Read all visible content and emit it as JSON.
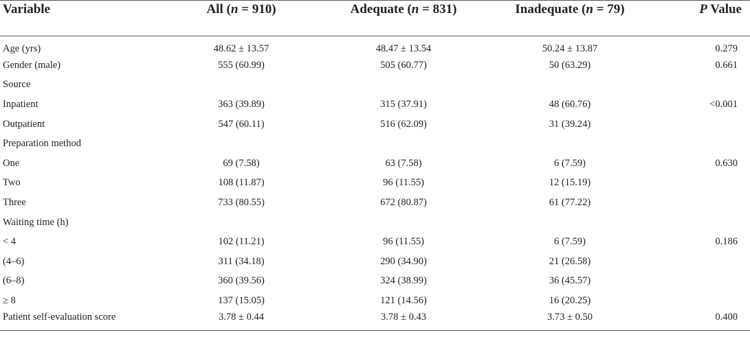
{
  "table": {
    "headers": {
      "variable": "Variable",
      "all": {
        "label": "All (",
        "n": "n",
        "rest": " = 910)"
      },
      "adequate": {
        "label": "Adequate (",
        "n": "n",
        "rest": " = 831)"
      },
      "inadequate": {
        "label": "Inadequate (",
        "n": "n",
        "rest": " = 79)"
      },
      "pvalue": {
        "p": "P",
        "rest": " Value"
      }
    },
    "rows": [
      {
        "variable": "Age (yrs)",
        "all": "48.62 ± 13.57",
        "adequate": "48.47 ± 13.54",
        "inadequate": "50.24 ± 13.87",
        "p": "0.279"
      },
      {
        "variable": "Gender (male)",
        "all": "555 (60.99)",
        "adequate": "505 (60.77)",
        "inadequate": "50 (63.29)",
        "p": "0.661"
      },
      {
        "variable": "Source",
        "all": "",
        "adequate": "",
        "inadequate": "",
        "p": ""
      },
      {
        "variable": "Inpatient",
        "all": "363 (39.89)",
        "adequate": "315 (37.91)",
        "inadequate": "48 (60.76)",
        "p": "<0.001"
      },
      {
        "variable": "Outpatient",
        "all": "547 (60.11)",
        "adequate": "516 (62.09)",
        "inadequate": "31 (39.24)",
        "p": ""
      },
      {
        "variable": "Preparation method",
        "all": "",
        "adequate": "",
        "inadequate": "",
        "p": ""
      },
      {
        "variable": "One",
        "all": "69 (7.58)",
        "adequate": "63 (7.58)",
        "inadequate": "6 (7.59)",
        "p": "0.630"
      },
      {
        "variable": "Two",
        "all": "108 (11.87)",
        "adequate": "96 (11.55)",
        "inadequate": "12 (15.19)",
        "p": ""
      },
      {
        "variable": "Three",
        "all": "733 (80.55)",
        "adequate": "672 (80.87)",
        "inadequate": "61 (77.22)",
        "p": ""
      },
      {
        "variable": "Waiting time (h)",
        "all": "",
        "adequate": "",
        "inadequate": "",
        "p": ""
      },
      {
        "variable": "< 4",
        "all": "102 (11.21)",
        "adequate": "96 (11.55)",
        "inadequate": "6 (7.59)",
        "p": "0.186"
      },
      {
        "variable": "(4–6)",
        "all": "311 (34.18)",
        "adequate": "290 (34.90)",
        "inadequate": "21 (26.58)",
        "p": ""
      },
      {
        "variable": "(6–8)",
        "all": "360 (39.56)",
        "adequate": "324 (38.99)",
        "inadequate": "36 (45.57)",
        "p": ""
      },
      {
        "variable": "≥ 8",
        "all": "137 (15.05)",
        "adequate": "121 (14.56)",
        "inadequate": "16 (20.25)",
        "p": ""
      },
      {
        "variable": "Patient self-evaluation score",
        "all": "3.78 ± 0.44",
        "adequate": "3.78 ± 0.43",
        "inadequate": "3.73 ± 0.50",
        "p": "0.400"
      }
    ]
  }
}
